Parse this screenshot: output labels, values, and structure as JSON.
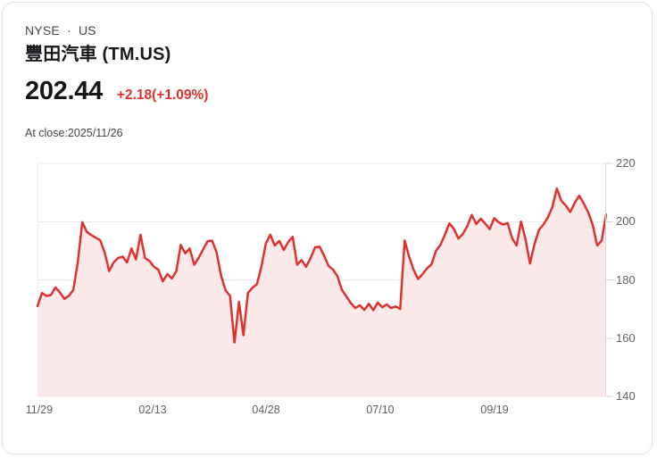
{
  "header": {
    "exchange_line": "NYSE · US",
    "title": "豐田汽車 (TM.US)",
    "price": "202.44",
    "change": "+2.18(+1.09%)",
    "as_of": "At close:2025/11/26"
  },
  "colors": {
    "line": "#e03131",
    "fill": "#fbe9e9",
    "change_text": "#e0302c",
    "grid": "#eaeaea",
    "axis": "#d6d6d6",
    "tick_text": "#5e6267",
    "card_border": "#dfe5f0"
  },
  "chart_data": {
    "type": "area",
    "title": "TM.US 1-year price",
    "xlabel": "",
    "ylabel": "",
    "ylim": [
      140,
      220
    ],
    "grid": true,
    "y_axis_side": "right",
    "y_ticks": [
      220,
      200,
      180,
      160,
      140
    ],
    "x_ticks": [
      {
        "label": "11/29",
        "pos": 0.003
      },
      {
        "label": "02/13",
        "pos": 0.2025
      },
      {
        "label": "04/28",
        "pos": 0.402
      },
      {
        "label": "07/10",
        "pos": 0.6028
      },
      {
        "label": "09/19",
        "pos": 0.8038
      }
    ],
    "values": [
      171.0,
      175.5,
      174.5,
      174.8,
      177.4,
      175.7,
      173.5,
      174.5,
      176.5,
      186.0,
      199.8,
      196.5,
      195.4,
      194.5,
      193.6,
      189.5,
      183.0,
      186.0,
      187.5,
      188.0,
      186.0,
      190.8,
      187.0,
      195.5,
      187.5,
      186.5,
      184.5,
      183.5,
      179.5,
      182.0,
      180.5,
      183.0,
      192.0,
      189.1,
      190.8,
      185.2,
      187.6,
      190.5,
      193.3,
      193.5,
      189.5,
      181.5,
      176.4,
      174.5,
      158.5,
      172.5,
      161.0,
      175.5,
      177.3,
      178.5,
      184.5,
      192.5,
      195.5,
      191.8,
      193.4,
      190.3,
      193.0,
      194.8,
      185.2,
      186.8,
      184.5,
      187.5,
      191.2,
      191.4,
      188.3,
      184.8,
      183.6,
      181.2,
      176.5,
      174.3,
      172.0,
      170.3,
      171.3,
      169.7,
      171.8,
      169.6,
      172.2,
      170.6,
      171.6,
      170.3,
      170.9,
      170.0,
      193.5,
      188.0,
      183.5,
      180.3,
      182.0,
      184.0,
      185.3,
      190.0,
      192.0,
      195.5,
      199.4,
      197.5,
      194.2,
      195.8,
      198.5,
      202.3,
      199.2,
      201.0,
      199.3,
      197.4,
      201.2,
      199.8,
      199.0,
      199.5,
      194.3,
      191.8,
      200.0,
      194.0,
      185.6,
      192.2,
      197.2,
      199.0,
      201.5,
      205.0,
      211.4,
      207.2,
      205.5,
      203.3,
      206.5,
      208.9,
      206.3,
      203.2,
      198.9,
      191.8,
      193.5,
      202.44
    ]
  }
}
